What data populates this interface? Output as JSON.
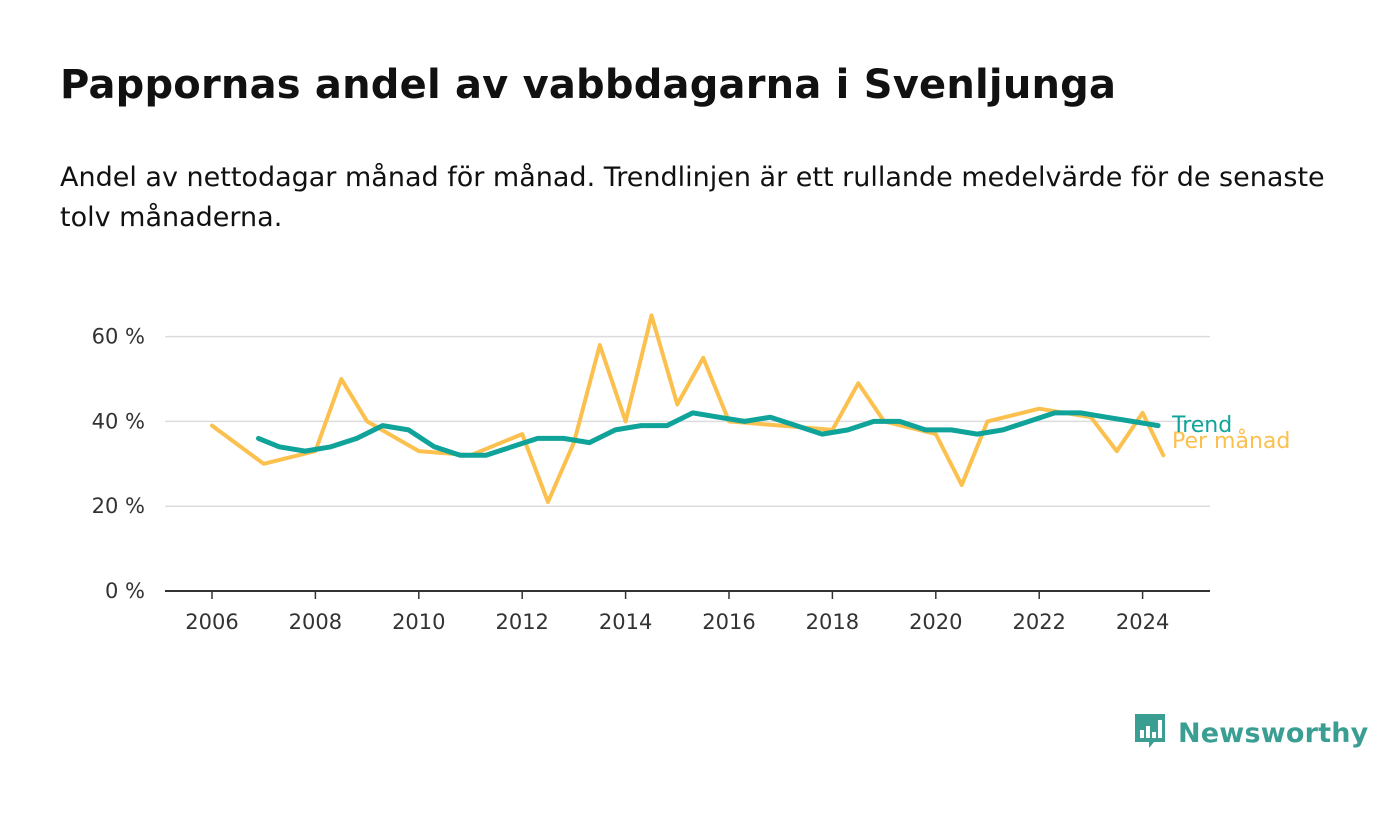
{
  "title": "Pappornas andel av vabbdagarna i Svenljunga",
  "subtitle": "Andel av nettodagar månad för månad. Trendlinjen är ett rullande medelvärde för de senaste tolv månaderna.",
  "brand": {
    "name": "Newsworthy",
    "icon": "newsworthy-logo-icon",
    "color": "#3a9e93"
  },
  "chart_data": {
    "type": "line",
    "x_axis": {
      "ticks": [
        2006,
        2008,
        2010,
        2012,
        2014,
        2016,
        2018,
        2020,
        2022,
        2024
      ]
    },
    "y_axis": {
      "ticks": [
        0,
        20,
        40,
        60
      ],
      "tick_labels": [
        "0 %",
        "20 %",
        "40 %",
        "60 %"
      ],
      "ylim": [
        0,
        70
      ],
      "unit": "%"
    },
    "grid": "horizontal",
    "legend_placement": "right-end-of-lines",
    "series": [
      {
        "name": "Per månad",
        "color": "#fbc04d",
        "x": [
          2006.0,
          2007.0,
          2008.0,
          2008.5,
          2009.0,
          2010.0,
          2011.0,
          2012.0,
          2012.5,
          2013.0,
          2013.5,
          2014.0,
          2014.5,
          2015.0,
          2015.5,
          2016.0,
          2017.0,
          2018.0,
          2018.5,
          2019.0,
          2020.0,
          2020.5,
          2021.0,
          2022.0,
          2023.0,
          2023.5,
          2024.0,
          2024.4
        ],
        "values": [
          39,
          30,
          33,
          50,
          40,
          33,
          32,
          37,
          21,
          35,
          58,
          40,
          65,
          44,
          55,
          40,
          39,
          38,
          49,
          40,
          37,
          25,
          40,
          43,
          41,
          33,
          42,
          32
        ]
      },
      {
        "name": "Trend",
        "color": "#10a39a",
        "x": [
          2006.9,
          2007.3,
          2007.8,
          2008.3,
          2008.8,
          2009.3,
          2009.8,
          2010.3,
          2010.8,
          2011.3,
          2011.8,
          2012.3,
          2012.8,
          2013.3,
          2013.8,
          2014.3,
          2014.8,
          2015.3,
          2015.8,
          2016.3,
          2016.8,
          2017.3,
          2017.8,
          2018.3,
          2018.8,
          2019.3,
          2019.8,
          2020.3,
          2020.8,
          2021.3,
          2021.8,
          2022.3,
          2022.8,
          2023.3,
          2023.8,
          2024.3
        ],
        "values": [
          36,
          34,
          33,
          34,
          36,
          39,
          38,
          34,
          32,
          32,
          34,
          36,
          36,
          35,
          38,
          39,
          39,
          42,
          41,
          40,
          41,
          39,
          37,
          38,
          40,
          40,
          38,
          38,
          37,
          38,
          40,
          42,
          42,
          41,
          40,
          39
        ]
      }
    ]
  }
}
